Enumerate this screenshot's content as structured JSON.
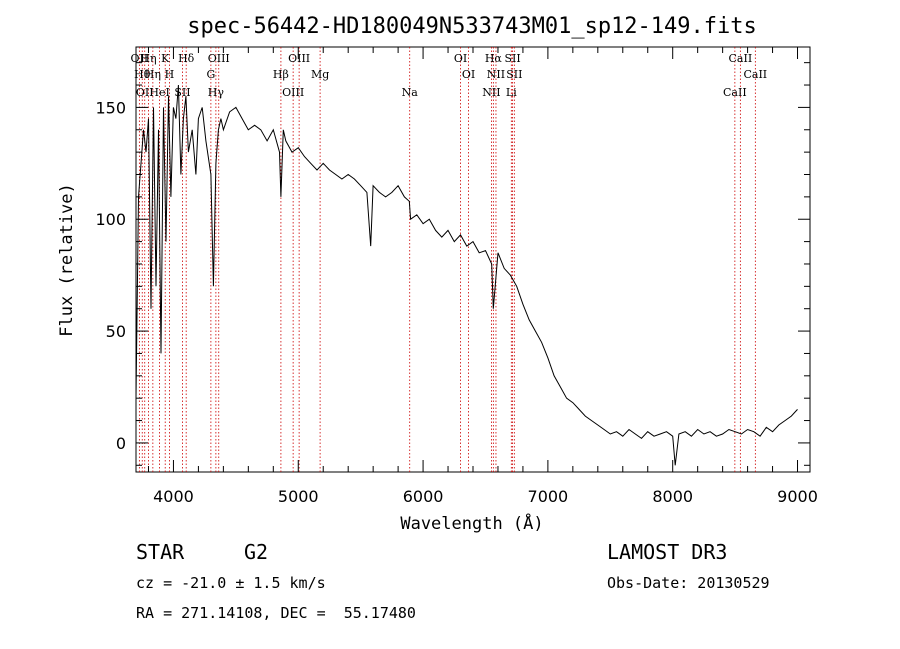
{
  "chart_data": {
    "type": "line",
    "title": "spec-56442-HD180049N533743M01_sp12-149.fits",
    "xlabel": "Wavelength (Å)",
    "ylabel": "Flux (relative)",
    "xlim": [
      3700,
      9100
    ],
    "ylim": [
      -13,
      177
    ],
    "xticks": [
      4000,
      5000,
      6000,
      7000,
      8000,
      9000
    ],
    "yticks": [
      0,
      50,
      100,
      150
    ],
    "grid": false,
    "series": [
      {
        "x": [
          3700,
          3720,
          3740,
          3760,
          3780,
          3800,
          3820,
          3840,
          3860,
          3880,
          3900,
          3920,
          3940,
          3960,
          3980,
          4000,
          4020,
          4040,
          4060,
          4080,
          4100,
          4120,
          4150,
          4180,
          4200,
          4230,
          4260,
          4300,
          4320,
          4340,
          4360,
          4380,
          4400,
          4450,
          4500,
          4550,
          4600,
          4650,
          4700,
          4750,
          4800,
          4850,
          4861,
          4880,
          4900,
          4950,
          5000,
          5050,
          5100,
          5150,
          5200,
          5250,
          5300,
          5350,
          5400,
          5450,
          5500,
          5550,
          5580,
          5600,
          5650,
          5700,
          5750,
          5800,
          5850,
          5890,
          5900,
          5950,
          6000,
          6050,
          6100,
          6150,
          6200,
          6250,
          6300,
          6350,
          6400,
          6450,
          6500,
          6550,
          6563,
          6600,
          6650,
          6700,
          6750,
          6800,
          6850,
          6900,
          6950,
          7000,
          7050,
          7100,
          7150,
          7200,
          7250,
          7300,
          7350,
          7400,
          7450,
          7500,
          7550,
          7600,
          7650,
          7700,
          7750,
          7800,
          7850,
          7900,
          7950,
          8000,
          8020,
          8050,
          8100,
          8150,
          8200,
          8250,
          8300,
          8350,
          8400,
          8450,
          8500,
          8550,
          8600,
          8650,
          8700,
          8750,
          8800,
          8850,
          8900,
          8950,
          9000
        ],
        "y": [
          20,
          110,
          125,
          140,
          130,
          145,
          60,
          150,
          70,
          140,
          40,
          150,
          90,
          155,
          110,
          150,
          145,
          160,
          120,
          145,
          155,
          130,
          140,
          120,
          145,
          150,
          135,
          120,
          70,
          125,
          140,
          145,
          140,
          148,
          150,
          145,
          140,
          142,
          140,
          135,
          140,
          130,
          110,
          140,
          135,
          130,
          132,
          128,
          125,
          122,
          125,
          122,
          120,
          118,
          120,
          118,
          115,
          112,
          88,
          115,
          112,
          110,
          112,
          115,
          110,
          108,
          100,
          102,
          98,
          100,
          95,
          92,
          95,
          90,
          93,
          88,
          90,
          85,
          86,
          80,
          60,
          85,
          78,
          75,
          70,
          62,
          55,
          50,
          45,
          38,
          30,
          25,
          20,
          18,
          15,
          12,
          10,
          8,
          6,
          4,
          5,
          3,
          6,
          4,
          2,
          5,
          3,
          4,
          5,
          3,
          -10,
          4,
          5,
          3,
          6,
          4,
          5,
          3,
          4,
          6,
          5,
          4,
          6,
          5,
          3,
          7,
          5,
          8,
          10,
          12,
          15
        ]
      }
    ],
    "spectral_lines": [
      {
        "x": 3727,
        "label": "OII"
      },
      {
        "x": 3750,
        "label": "Hθ"
      },
      {
        "x": 3770,
        "label": "OII"
      },
      {
        "x": 3800,
        "label": "Hη"
      },
      {
        "x": 3835,
        "label": "Hη"
      },
      {
        "x": 3889,
        "label": "HeI"
      },
      {
        "x": 3934,
        "label": "K"
      },
      {
        "x": 3968,
        "label": "H"
      },
      {
        "x": 4072,
        "label": "SII"
      },
      {
        "x": 4102,
        "label": "Hδ"
      },
      {
        "x": 4300,
        "label": "G"
      },
      {
        "x": 4340,
        "label": "Hγ"
      },
      {
        "x": 4363,
        "label": "OIII"
      },
      {
        "x": 4861,
        "label": "Hβ"
      },
      {
        "x": 4959,
        "label": "OIII"
      },
      {
        "x": 5007,
        "label": "OIII"
      },
      {
        "x": 5175,
        "label": "Mg"
      },
      {
        "x": 5893,
        "label": "Na"
      },
      {
        "x": 6300,
        "label": "OI"
      },
      {
        "x": 6364,
        "label": "OI"
      },
      {
        "x": 6548,
        "label": "NII"
      },
      {
        "x": 6563,
        "label": "Hα"
      },
      {
        "x": 6584,
        "label": "NII"
      },
      {
        "x": 6707,
        "label": "Li"
      },
      {
        "x": 6717,
        "label": "SII"
      },
      {
        "x": 6731,
        "label": "SII"
      },
      {
        "x": 8498,
        "label": "CaII"
      },
      {
        "x": 8542,
        "label": "CaII"
      },
      {
        "x": 8662,
        "label": "CaII"
      }
    ]
  },
  "info": {
    "object_class": "STAR",
    "subclass": "G2",
    "cz": "cz = -21.0 ± 1.5 km/s",
    "coords": "RA = 271.14108, DEC =  55.17480",
    "survey": "LAMOST DR3",
    "obs_date": "Obs-Date: 20130529"
  },
  "colors": {
    "line_marker": "#cc0000",
    "spectrum": "#000000"
  }
}
